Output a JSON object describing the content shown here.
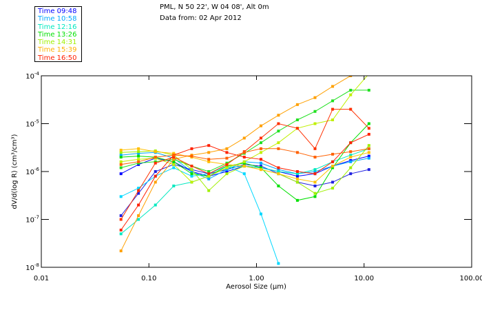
{
  "chart_data": {
    "type": "line",
    "title": "PML, N 50 22', W 04 08', Alt 0m",
    "subtitle": "Data from: 02 Apr 2012",
    "xlabel": "Aerosol Size (µm)",
    "ylabel": "dV/d(log R) (cm³/cm³)",
    "xscale": "log",
    "yscale": "log",
    "xlim": [
      0.01,
      100
    ],
    "ylim": [
      1e-08,
      0.0001
    ],
    "grid": false,
    "legend_placement": "top-left",
    "xticks": [
      {
        "value": 0.01,
        "label": "0.01"
      },
      {
        "value": 0.1,
        "label": "0.10"
      },
      {
        "value": 1,
        "label": "1.00"
      },
      {
        "value": 10,
        "label": "10.00"
      },
      {
        "value": 100,
        "label": "100.00"
      }
    ],
    "yticks": [
      {
        "value": 0.0001,
        "base": "10",
        "exp": "-4"
      },
      {
        "value": 1e-05,
        "base": "10",
        "exp": "-5"
      },
      {
        "value": 1e-06,
        "base": "10",
        "exp": "-6"
      },
      {
        "value": 1e-07,
        "base": "10",
        "exp": "-7"
      },
      {
        "value": 1e-08,
        "base": "10",
        "exp": "-8"
      }
    ],
    "legend": [
      {
        "label": "Time 09:48",
        "color": "#0000ff"
      },
      {
        "label": "Time 10:58",
        "color": "#00a8ff"
      },
      {
        "label": "Time 12:16",
        "color": "#00e8c0"
      },
      {
        "label": "Time 13:26",
        "color": "#00e000"
      },
      {
        "label": "Time 14:31",
        "color": "#a0f000"
      },
      {
        "label": "Time 15:39",
        "color": "#ffb000"
      },
      {
        "label": "Time 16:50",
        "color": "#ff2000"
      }
    ],
    "x": [
      0.055,
      0.08,
      0.115,
      0.17,
      0.25,
      0.36,
      0.53,
      0.77,
      1.1,
      1.6,
      2.4,
      3.5,
      5.1,
      7.5,
      11.1
    ],
    "series": [
      {
        "name": "Time 09:48",
        "color": "#0000ff",
        "values": [
          9e-07,
          1.4e-06,
          1.9e-06,
          1.6e-06,
          1e-06,
          8e-07,
          1e-06,
          1.3e-06,
          1.2e-06,
          1e-06,
          8e-07,
          9e-07,
          1.3e-06,
          1.7e-06,
          2.1e-06
        ]
      },
      {
        "name": "Time 09:48",
        "color": "#2020e0",
        "values": [
          1.2e-07,
          3.5e-07,
          1e-06,
          1.4e-06,
          1.1e-06,
          9e-07,
          1.1e-06,
          1.4e-06,
          1.3e-06,
          9e-07,
          6e-07,
          5e-07,
          6e-07,
          9e-07,
          1.1e-06
        ]
      },
      {
        "name": "Time 10:58",
        "color": "#00a8ff",
        "values": [
          2.2e-06,
          2.4e-06,
          2.5e-06,
          1.9e-06,
          1e-06,
          7e-07,
          1.1e-06,
          1.6e-06,
          1.5e-06,
          1.1e-06,
          9e-07,
          1e-06,
          1.3e-06,
          1.6e-06,
          1.9e-06
        ]
      },
      {
        "name": "Time 10:58",
        "color": "#00d8ff",
        "values": [
          3e-07,
          4.5e-07,
          8e-07,
          1.2e-06,
          8e-07,
          9e-07,
          1.3e-06,
          9e-07,
          1.3e-07,
          1.2e-08,
          null,
          null,
          null,
          null,
          null
        ]
      },
      {
        "name": "Time 12:16",
        "color": "#00e8c0",
        "values": [
          5e-08,
          1e-07,
          2e-07,
          5e-07,
          6e-07,
          8e-07,
          1.2e-06,
          1.3e-06,
          1.2e-06,
          1e-06,
          9e-07,
          1.1e-06,
          1.6e-06,
          2.2e-06,
          3e-06
        ]
      },
      {
        "name": "Time 13:26",
        "color": "#00e000",
        "values": [
          2e-06,
          2.1e-06,
          2e-06,
          1.6e-06,
          9e-07,
          8e-07,
          1.3e-06,
          1.5e-06,
          1.2e-06,
          5e-07,
          2.5e-07,
          3e-07,
          1.2e-06,
          4e-06,
          1e-05
        ]
      },
      {
        "name": "Time 13:26",
        "color": "#20e020",
        "values": [
          1.2e-06,
          1.5e-06,
          1.6e-06,
          1.8e-06,
          1.3e-06,
          1e-06,
          1.5e-06,
          2.4e-06,
          4e-06,
          7e-06,
          1.2e-05,
          1.8e-05,
          3e-05,
          5e-05,
          5e-05
        ]
      },
      {
        "name": "Time 14:31",
        "color": "#a0f000",
        "values": [
          2.5e-06,
          2.6e-06,
          2.7e-06,
          2.2e-06,
          1.1e-06,
          4e-07,
          9e-07,
          1.3e-06,
          1.1e-06,
          9e-07,
          6e-07,
          3.5e-07,
          4.5e-07,
          1.2e-06,
          3.5e-06
        ]
      },
      {
        "name": "Time 14:31",
        "color": "#c0f000",
        "values": [
          1.6e-06,
          1.8e-06,
          1.9e-06,
          1.4e-06,
          6e-07,
          8e-07,
          1.2e-06,
          1.6e-06,
          2.5e-06,
          4e-06,
          8e-06,
          1e-05,
          1.2e-05,
          4e-05,
          0.00011
        ]
      },
      {
        "name": "Time 15:39",
        "color": "#ffa000",
        "values": [
          2.2e-08,
          1.2e-07,
          6e-07,
          1.8e-06,
          2.2e-06,
          2.5e-06,
          3e-06,
          5e-06,
          9e-06,
          1.5e-05,
          2.5e-05,
          3.5e-05,
          6e-05,
          0.0001,
          0.00015
        ]
      },
      {
        "name": "Time 15:39",
        "color": "#ffc000",
        "values": [
          2.8e-06,
          3e-06,
          2.6e-06,
          2.4e-06,
          2e-06,
          1.6e-06,
          1.4e-06,
          1.3e-06,
          1.1e-06,
          9e-07,
          7e-07,
          6e-07,
          1.3e-06,
          2e-06,
          2.5e-06
        ]
      },
      {
        "name": "Time 16:50",
        "color": "#ff2000",
        "values": [
          6e-08,
          2e-07,
          8e-07,
          2.2e-06,
          3e-06,
          3.5e-06,
          2.5e-06,
          2e-06,
          1.8e-06,
          1.2e-06,
          1e-06,
          9e-07,
          1.6e-06,
          4e-06,
          6e-06
        ]
      },
      {
        "name": "Time 16:50",
        "color": "#ff3000",
        "values": [
          1e-07,
          4e-07,
          1.5e-06,
          2e-06,
          1.3e-06,
          9e-07,
          1.4e-06,
          2.6e-06,
          5e-06,
          1e-05,
          8e-06,
          3e-06,
          2e-05,
          2e-05,
          8e-06
        ]
      },
      {
        "name": "Time 16:50",
        "color": "#ff6000",
        "values": [
          1.4e-06,
          1.6e-06,
          2e-06,
          2.2e-06,
          2.1e-06,
          1.8e-06,
          1.9e-06,
          2.5e-06,
          3e-06,
          3e-06,
          2.5e-06,
          2e-06,
          2.3e-06,
          2.6e-06,
          3e-06
        ]
      }
    ]
  }
}
